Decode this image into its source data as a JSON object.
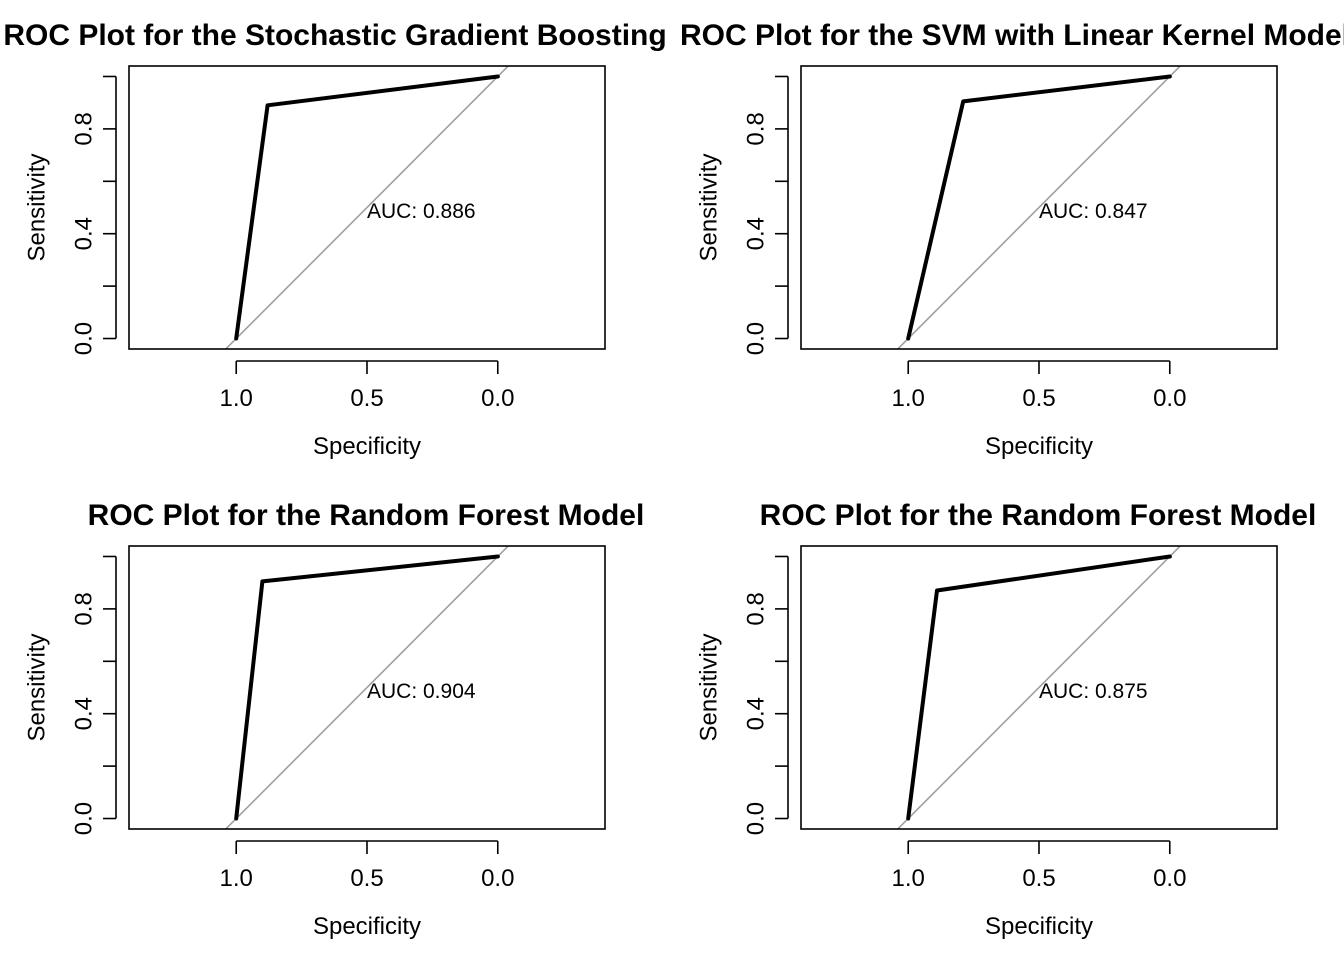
{
  "colors": {
    "curve": "#000000",
    "diagonal": "#A0A0A0",
    "frame": "#000000",
    "background": "#FFFFFF"
  },
  "chart_data": [
    {
      "type": "line",
      "title": "ROC Plot for the Stochastic Gradient Boosting",
      "xlabel": "Specificity",
      "ylabel": "Sensitivity",
      "xlim": [
        1.41,
        -0.41
      ],
      "ylim": [
        -0.04,
        1.04
      ],
      "x_reversed": true,
      "x_ticks": [
        1.0,
        0.5,
        0.0
      ],
      "x_tick_labels": [
        "1.0",
        "0.5",
        "0.0"
      ],
      "y_ticks": [
        0.0,
        0.2,
        0.4,
        0.6,
        0.8,
        1.0
      ],
      "y_tick_labels": [
        "0.0",
        "",
        "0.4",
        "",
        "0.8",
        ""
      ],
      "series": [
        {
          "x": [
            1.0,
            0.88,
            0.0
          ],
          "y": [
            0.0,
            0.89,
            1.0
          ]
        }
      ],
      "reference_line": {
        "x": [
          1.0,
          0.0
        ],
        "y": [
          0.0,
          1.0
        ]
      },
      "annotation": "AUC: 0.886",
      "annotation_at": {
        "x": 0.5,
        "y": 0.46
      }
    },
    {
      "type": "line",
      "title": "ROC Plot for the SVM with Linear Kernel Model",
      "xlabel": "Specificity",
      "ylabel": "Sensitivity",
      "xlim": [
        1.41,
        -0.41
      ],
      "ylim": [
        -0.04,
        1.04
      ],
      "x_reversed": true,
      "x_ticks": [
        1.0,
        0.5,
        0.0
      ],
      "x_tick_labels": [
        "1.0",
        "0.5",
        "0.0"
      ],
      "y_ticks": [
        0.0,
        0.2,
        0.4,
        0.6,
        0.8,
        1.0
      ],
      "y_tick_labels": [
        "0.0",
        "",
        "0.4",
        "",
        "0.8",
        ""
      ],
      "series": [
        {
          "x": [
            1.0,
            0.79,
            0.0
          ],
          "y": [
            0.0,
            0.905,
            1.0
          ]
        }
      ],
      "reference_line": {
        "x": [
          1.0,
          0.0
        ],
        "y": [
          0.0,
          1.0
        ]
      },
      "annotation": "AUC: 0.847",
      "annotation_at": {
        "x": 0.5,
        "y": 0.46
      }
    },
    {
      "type": "line",
      "title": "ROC Plot for the Random Forest Model",
      "xlabel": "Specificity",
      "ylabel": "Sensitivity",
      "xlim": [
        1.41,
        -0.41
      ],
      "ylim": [
        -0.04,
        1.04
      ],
      "x_reversed": true,
      "x_ticks": [
        1.0,
        0.5,
        0.0
      ],
      "x_tick_labels": [
        "1.0",
        "0.5",
        "0.0"
      ],
      "y_ticks": [
        0.0,
        0.2,
        0.4,
        0.6,
        0.8,
        1.0
      ],
      "y_tick_labels": [
        "0.0",
        "",
        "0.4",
        "",
        "0.8",
        ""
      ],
      "series": [
        {
          "x": [
            1.0,
            0.9,
            0.0
          ],
          "y": [
            0.0,
            0.905,
            1.0
          ]
        }
      ],
      "reference_line": {
        "x": [
          1.0,
          0.0
        ],
        "y": [
          0.0,
          1.0
        ]
      },
      "annotation": "AUC: 0.904",
      "annotation_at": {
        "x": 0.5,
        "y": 0.46
      }
    },
    {
      "type": "line",
      "title": "ROC Plot for the Random Forest Model",
      "xlabel": "Specificity",
      "ylabel": "Sensitivity",
      "xlim": [
        1.41,
        -0.41
      ],
      "ylim": [
        -0.04,
        1.04
      ],
      "x_reversed": true,
      "x_ticks": [
        1.0,
        0.5,
        0.0
      ],
      "x_tick_labels": [
        "1.0",
        "0.5",
        "0.0"
      ],
      "y_ticks": [
        0.0,
        0.2,
        0.4,
        0.6,
        0.8,
        1.0
      ],
      "y_tick_labels": [
        "0.0",
        "",
        "0.4",
        "",
        "0.8",
        ""
      ],
      "series": [
        {
          "x": [
            1.0,
            0.89,
            0.0
          ],
          "y": [
            0.0,
            0.87,
            1.0
          ]
        }
      ],
      "reference_line": {
        "x": [
          1.0,
          0.0
        ],
        "y": [
          0.0,
          1.0
        ]
      },
      "annotation": "AUC: 0.875",
      "annotation_at": {
        "x": 0.5,
        "y": 0.46
      }
    }
  ]
}
